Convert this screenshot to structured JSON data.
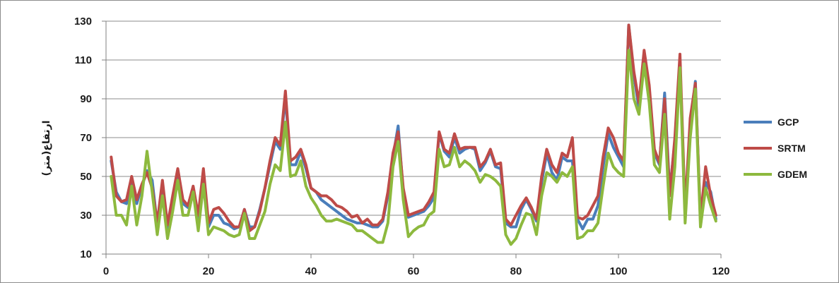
{
  "chart_data": {
    "type": "line",
    "title": "",
    "xlabel": "",
    "ylabel": "ارتفاع(متر)",
    "xlim": [
      0,
      120
    ],
    "ylim": [
      10,
      130
    ],
    "x_ticks": [
      0,
      20,
      40,
      60,
      80,
      100,
      120
    ],
    "y_ticks": [
      10,
      30,
      50,
      70,
      90,
      110,
      130
    ],
    "grid": "horizontal",
    "legend_position": "right",
    "x": [
      1,
      2,
      3,
      4,
      5,
      6,
      7,
      8,
      9,
      10,
      11,
      12,
      13,
      14,
      15,
      16,
      17,
      18,
      19,
      20,
      21,
      22,
      23,
      24,
      25,
      26,
      27,
      28,
      29,
      30,
      31,
      32,
      33,
      34,
      35,
      36,
      37,
      38,
      39,
      40,
      41,
      42,
      43,
      44,
      45,
      46,
      47,
      48,
      49,
      50,
      51,
      52,
      53,
      54,
      55,
      56,
      57,
      58,
      59,
      60,
      61,
      62,
      63,
      64,
      65,
      66,
      67,
      68,
      69,
      70,
      71,
      72,
      73,
      74,
      75,
      76,
      77,
      78,
      79,
      80,
      81,
      82,
      83,
      84,
      85,
      86,
      87,
      88,
      89,
      90,
      91,
      92,
      93,
      94,
      95,
      96,
      97,
      98,
      99,
      100,
      101,
      102,
      103,
      104,
      105,
      106,
      107,
      108,
      109,
      110,
      111,
      112,
      113,
      114,
      115,
      116,
      117,
      118,
      119
    ],
    "series": [
      {
        "name": "GCP",
        "color": "#4a7ebb",
        "values": [
          58,
          42,
          37,
          36,
          48,
          36,
          45,
          53,
          48,
          25,
          45,
          23,
          38,
          53,
          36,
          34,
          44,
          28,
          52,
          24,
          30,
          30,
          26,
          25,
          23,
          24,
          33,
          24,
          24,
          33,
          44,
          56,
          68,
          64,
          91,
          56,
          56,
          63,
          54,
          44,
          42,
          38,
          36,
          34,
          32,
          30,
          28,
          27,
          26,
          26,
          25,
          24,
          24,
          27,
          40,
          60,
          76,
          42,
          29,
          30,
          31,
          32,
          35,
          39,
          72,
          63,
          60,
          70,
          62,
          64,
          65,
          64,
          53,
          57,
          63,
          55,
          54,
          26,
          24,
          24,
          33,
          38,
          33,
          27,
          47,
          62,
          52,
          48,
          60,
          58,
          58,
          28,
          23,
          28,
          28,
          35,
          55,
          72,
          65,
          60,
          55,
          128,
          102,
          85,
          114,
          95,
          62,
          56,
          93,
          42,
          68,
          108,
          30,
          76,
          99,
          27,
          47,
          42,
          28
        ]
      },
      {
        "name": "SRTM",
        "color": "#be4b48",
        "values": [
          60,
          40,
          37,
          38,
          50,
          38,
          46,
          52,
          44,
          26,
          48,
          25,
          40,
          54,
          38,
          35,
          45,
          30,
          54,
          26,
          33,
          34,
          31,
          27,
          24,
          24,
          33,
          22,
          24,
          32,
          44,
          58,
          70,
          66,
          94,
          58,
          60,
          64,
          56,
          44,
          42,
          40,
          40,
          38,
          35,
          34,
          32,
          29,
          30,
          26,
          28,
          25,
          25,
          28,
          42,
          62,
          73,
          44,
          30,
          31,
          32,
          33,
          37,
          42,
          73,
          64,
          62,
          72,
          64,
          65,
          65,
          65,
          55,
          58,
          64,
          56,
          57,
          28,
          25,
          30,
          35,
          39,
          34,
          28,
          50,
          64,
          56,
          52,
          62,
          60,
          70,
          29,
          28,
          30,
          35,
          40,
          60,
          75,
          70,
          62,
          58,
          128,
          104,
          88,
          115,
          97,
          64,
          57,
          90,
          40,
          70,
          113,
          32,
          80,
          98,
          28,
          55,
          40,
          30
        ]
      },
      {
        "name": "GDEM",
        "color": "#8db93e",
        "values": [
          50,
          30,
          30,
          25,
          45,
          25,
          40,
          63,
          42,
          20,
          40,
          18,
          32,
          48,
          30,
          30,
          42,
          22,
          46,
          20,
          24,
          23,
          22,
          20,
          19,
          20,
          31,
          18,
          18,
          25,
          32,
          46,
          56,
          53,
          78,
          50,
          51,
          58,
          45,
          39,
          35,
          30,
          27,
          27,
          28,
          27,
          26,
          25,
          22,
          22,
          20,
          18,
          16,
          16,
          26,
          55,
          68,
          38,
          19,
          22,
          24,
          25,
          30,
          32,
          64,
          55,
          56,
          65,
          55,
          58,
          56,
          53,
          47,
          51,
          50,
          48,
          45,
          20,
          15,
          18,
          25,
          31,
          30,
          20,
          40,
          52,
          50,
          47,
          52,
          50,
          55,
          18,
          19,
          22,
          22,
          26,
          45,
          62,
          55,
          52,
          50,
          115,
          90,
          82,
          108,
          88,
          56,
          52,
          82,
          28,
          55,
          106,
          26,
          70,
          95,
          24,
          44,
          35,
          27
        ]
      }
    ]
  }
}
